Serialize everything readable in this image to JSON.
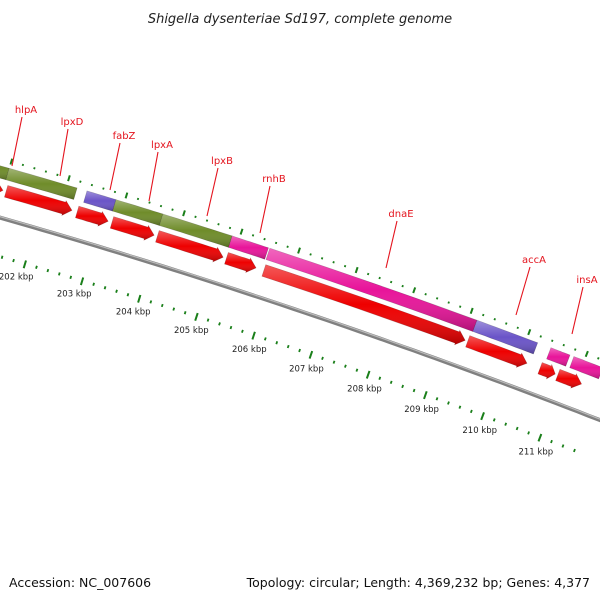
{
  "title": "Shigella dysenteriae Sd197, complete genome",
  "accession": "Accession: NC_007606",
  "summary": "Topology: circular; Length: 4,369,232 bp; Genes: 4,377",
  "colors": {
    "gene_label": "#e4141e",
    "cds_arrow": "#ee0000",
    "cog_green": "#6f8c2a",
    "cog_purple": "#6a54c8",
    "cog_magenta": "#e8149a",
    "tick_green": "#1a7f1a",
    "backbone": "#808080"
  },
  "genes": [
    {
      "label": "hlpA",
      "cog": "cog_green"
    },
    {
      "label": "lpxD",
      "cog": "cog_green"
    },
    {
      "label": "fabZ",
      "cog": "cog_purple"
    },
    {
      "label": "lpxA",
      "cog": "cog_green"
    },
    {
      "label": "lpxB",
      "cog": "cog_green"
    },
    {
      "label": "rnhB",
      "cog": "cog_magenta"
    },
    {
      "label": "dnaE",
      "cog": "cog_magenta"
    },
    {
      "label": "accA",
      "cog": "cog_purple"
    },
    {
      "label": "insA",
      "cog": "cog_magenta"
    }
  ],
  "kbp_labels": [
    "202 kbp",
    "203 kbp",
    "204 kbp",
    "205 kbp",
    "206 kbp",
    "207 kbp",
    "208 kbp",
    "209 kbp",
    "210 kbp",
    "211 kbp"
  ]
}
